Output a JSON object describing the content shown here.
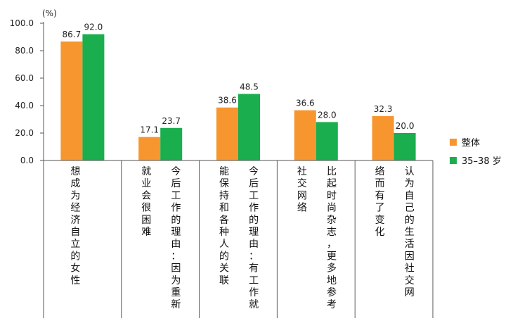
{
  "chart_data": {
    "type": "bar",
    "unit_label": "(%)",
    "y_ticks": [
      "100.0",
      "80.0",
      "60.0",
      "40.0",
      "20.0",
      "0.0"
    ],
    "ylim": [
      0,
      100
    ],
    "grid": false,
    "legend_position": "right",
    "categories": [
      {
        "lines": [
          "想成为经济自立的女性"
        ]
      },
      {
        "lines": [
          "就业会很困难",
          "今后工作的理由：因为重新"
        ]
      },
      {
        "lines": [
          "能保持和各种人的关联",
          "今后工作的理由：有工作就"
        ]
      },
      {
        "lines": [
          "社交网络",
          "比起时尚杂志，更多地参考"
        ]
      },
      {
        "lines": [
          "络而有了变化",
          "认为自己的生活因社交网"
        ]
      }
    ],
    "series": [
      {
        "name": "整体",
        "color": "#F7962F",
        "values": [
          86.7,
          17.1,
          38.6,
          36.6,
          32.3
        ],
        "labels": [
          "86.7",
          "17.1",
          "38.6",
          "36.6",
          "32.3"
        ]
      },
      {
        "name": "35–38 岁",
        "color": "#1AAE4E",
        "values": [
          92.0,
          23.7,
          48.5,
          28.0,
          20.0
        ],
        "labels": [
          "92.0",
          "23.7",
          "48.5",
          "28.0",
          "20.0"
        ]
      }
    ]
  }
}
